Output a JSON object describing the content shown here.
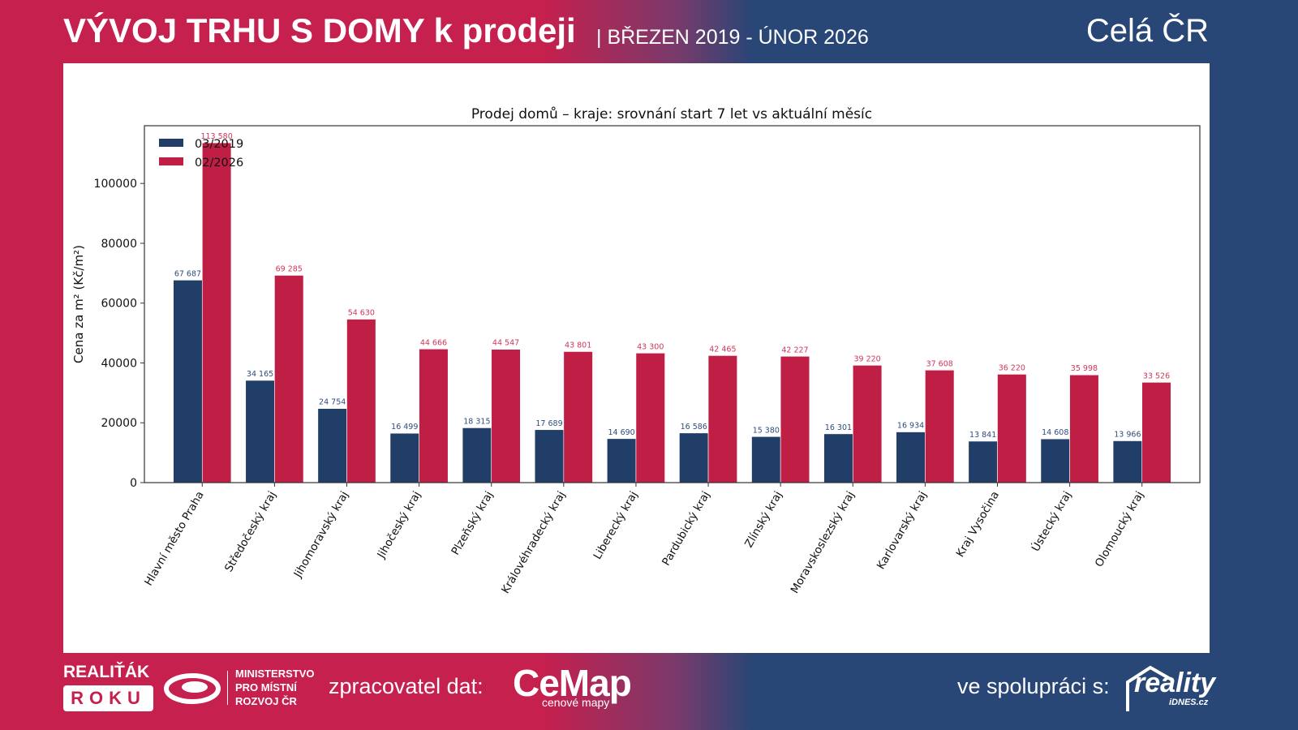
{
  "header": {
    "title": "VÝVOJ TRHU S DOMY k prodeji",
    "subtitle": "| BŘEZEN 2019 - ÚNOR 2026",
    "region": "Celá ČR"
  },
  "footer": {
    "realitak": "REALIŤÁK",
    "roku": "ROKU",
    "ministry_line1": "MINISTERSTVO",
    "ministry_line2": "PRO MÍSTNÍ",
    "ministry_line3": "ROZVOJ ČR",
    "processor_label": "zpracovatel dat:",
    "cemap_logo": "CeMap",
    "cemap_sub": "cenové mapy",
    "partner_label": "ve spolupráci s:",
    "reality_logo": "reality",
    "idnes": "iDNES.cz"
  },
  "colors": {
    "series_2019": "#203e68",
    "series_2026": "#c01f45",
    "label_2019": "#2f4d7a",
    "label_2026": "#d0365a",
    "brand_red": "#c5204e",
    "brand_blue": "#284676"
  },
  "chart_data": {
    "type": "bar",
    "title": "Prodej domů – kraje: srovnání start 7 let vs aktuální měsíc",
    "xlabel": "",
    "ylabel": "Cena za m² (Kč/m²)",
    "ylim": [
      0,
      119300
    ],
    "yticks": [
      0,
      20000,
      40000,
      60000,
      80000,
      100000
    ],
    "ytick_labels": [
      "0",
      "20000",
      "40000",
      "60000",
      "80000",
      "100000"
    ],
    "legend_position": "top-left",
    "grid": false,
    "categories": [
      "Hlavní město Praha",
      "Středočeský kraj",
      "Jihomoravský kraj",
      "Jihočeský kraj",
      "Plzeňský kraj",
      "Královéhradecký kraj",
      "Liberecký kraj",
      "Pardubický kraj",
      "Zlínský kraj",
      "Moravskoslezský kraj",
      "Karlovarský kraj",
      "Kraj Vysočina",
      "Ústecký kraj",
      "Olomoucký kraj"
    ],
    "series": [
      {
        "name": "03/2019",
        "values": [
          67687,
          34165,
          24754,
          16499,
          18315,
          17689,
          14690,
          16586,
          15380,
          16301,
          16934,
          13841,
          14608,
          13966
        ],
        "labels": [
          "67 687",
          "34 165",
          "24 754",
          "16 499",
          "18 315",
          "17 689",
          "14 690",
          "16 586",
          "15 380",
          "16 301",
          "16 934",
          "13 841",
          "14 608",
          "13 966"
        ]
      },
      {
        "name": "02/2026",
        "values": [
          113580,
          69285,
          54630,
          44666,
          44547,
          43801,
          43300,
          42465,
          42227,
          39220,
          37608,
          36220,
          35998,
          33526
        ],
        "labels": [
          "113 580",
          "69 285",
          "54 630",
          "44 666",
          "44 547",
          "43 801",
          "43 300",
          "42 465",
          "42 227",
          "39 220",
          "37 608",
          "36 220",
          "35 998",
          "33 526"
        ]
      }
    ]
  }
}
